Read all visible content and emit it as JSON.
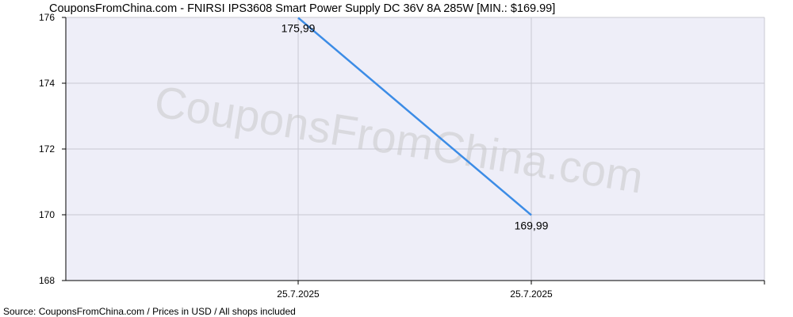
{
  "chart_data": {
    "type": "line",
    "title": "CouponsFromChina.com - FNIRSI IPS3608 Smart Power Supply DC 36V 8A 285W [MIN.: $169.99]",
    "xlabel": "",
    "ylabel": "",
    "x_ticks": [
      "25.7.2025",
      "25.7.2025"
    ],
    "ylim": [
      168,
      176
    ],
    "y_ticks": [
      168,
      170,
      172,
      174,
      176
    ],
    "grid": true,
    "series": [
      {
        "color": "#3c8ce6",
        "points": [
          {
            "x": "25.7.2025",
            "y": 175.99,
            "label": "175,99"
          },
          {
            "x": "25.7.2025",
            "y": 169.99,
            "label": "169,99"
          }
        ]
      }
    ],
    "source": "Source: CouponsFromChina.com / Prices in USD / All shops included",
    "watermark": "CouponsFromChina.com"
  }
}
